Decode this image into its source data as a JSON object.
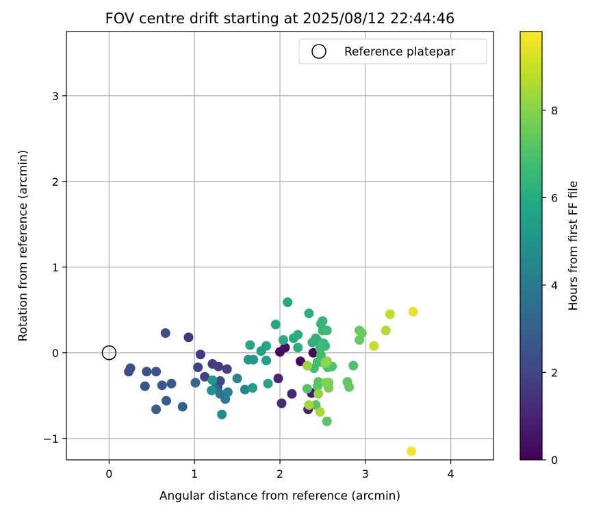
{
  "chart_data": {
    "type": "scatter",
    "title": "FOV centre drift starting at 2025/08/12 22:44:46",
    "xlabel": "Angular distance from reference (arcmin)",
    "ylabel": "Rotation from reference (arcmin)",
    "xlim": [
      -0.5,
      4.5
    ],
    "ylim": [
      -1.25,
      3.75
    ],
    "xticks": [
      0,
      1,
      2,
      3,
      4
    ],
    "yticks": [
      -1,
      0,
      1,
      2,
      3
    ],
    "xtick_labels": [
      "0",
      "1",
      "2",
      "3",
      "4"
    ],
    "ytick_labels": [
      "−1",
      "0",
      "1",
      "2",
      "3"
    ],
    "grid": true,
    "legend": {
      "position": "top-right",
      "entries": [
        "Reference platepar"
      ]
    },
    "reference_point": {
      "x": 0,
      "y": 0,
      "marker": "open-circle"
    },
    "colorbar": {
      "label": "Hours from first FF file",
      "colormap": "viridis",
      "range": [
        0,
        9.8
      ],
      "ticks": [
        0,
        2,
        4,
        6,
        8
      ],
      "tick_labels": [
        "0",
        "2",
        "4",
        "6",
        "8"
      ]
    },
    "points": [
      {
        "x": 2.0,
        "y": 0.01,
        "c": 0.3
      },
      {
        "x": 2.06,
        "y": 0.06,
        "c": 0.4
      },
      {
        "x": 2.24,
        "y": -0.1,
        "c": 0.3
      },
      {
        "x": 2.39,
        "y": 0.0,
        "c": 0.2
      },
      {
        "x": 2.37,
        "y": -0.47,
        "c": 0.7
      },
      {
        "x": 2.33,
        "y": -0.66,
        "c": 0.9
      },
      {
        "x": 1.98,
        "y": -0.3,
        "c": 1.0
      },
      {
        "x": 2.14,
        "y": -0.48,
        "c": 1.1
      },
      {
        "x": 2.02,
        "y": -0.59,
        "c": 1.2
      },
      {
        "x": 0.93,
        "y": 0.18,
        "c": 1.5
      },
      {
        "x": 1.07,
        "y": -0.02,
        "c": 1.6
      },
      {
        "x": 1.21,
        "y": -0.13,
        "c": 1.7
      },
      {
        "x": 1.28,
        "y": -0.16,
        "c": 1.7
      },
      {
        "x": 1.38,
        "y": -0.19,
        "c": 1.8
      },
      {
        "x": 1.04,
        "y": -0.17,
        "c": 1.9
      },
      {
        "x": 1.12,
        "y": -0.28,
        "c": 2.0
      },
      {
        "x": 1.3,
        "y": -0.33,
        "c": 2.1
      },
      {
        "x": 1.27,
        "y": -0.4,
        "c": 2.2
      },
      {
        "x": 0.66,
        "y": 0.23,
        "c": 2.3
      },
      {
        "x": 0.25,
        "y": -0.18,
        "c": 2.4
      },
      {
        "x": 0.23,
        "y": -0.22,
        "c": 2.4
      },
      {
        "x": 0.44,
        "y": -0.22,
        "c": 2.5
      },
      {
        "x": 0.55,
        "y": -0.22,
        "c": 2.5
      },
      {
        "x": 0.42,
        "y": -0.39,
        "c": 2.6
      },
      {
        "x": 0.62,
        "y": -0.38,
        "c": 2.7
      },
      {
        "x": 0.73,
        "y": -0.36,
        "c": 2.8
      },
      {
        "x": 0.67,
        "y": -0.56,
        "c": 2.9
      },
      {
        "x": 0.55,
        "y": -0.66,
        "c": 2.9
      },
      {
        "x": 0.86,
        "y": -0.63,
        "c": 3.1
      },
      {
        "x": 1.01,
        "y": -0.35,
        "c": 3.3
      },
      {
        "x": 1.24,
        "y": -0.42,
        "c": 3.5
      },
      {
        "x": 1.3,
        "y": -0.48,
        "c": 3.8
      },
      {
        "x": 1.36,
        "y": -0.54,
        "c": 4.0
      },
      {
        "x": 1.39,
        "y": -0.46,
        "c": 4.2
      },
      {
        "x": 1.5,
        "y": -0.3,
        "c": 4.4
      },
      {
        "x": 1.59,
        "y": -0.43,
        "c": 4.6
      },
      {
        "x": 1.32,
        "y": -0.72,
        "c": 4.8
      },
      {
        "x": 1.2,
        "y": -0.44,
        "c": 5.0
      },
      {
        "x": 1.21,
        "y": -0.32,
        "c": 5.2
      },
      {
        "x": 1.63,
        "y": -0.08,
        "c": 5.2
      },
      {
        "x": 1.69,
        "y": -0.08,
        "c": 5.3
      },
      {
        "x": 1.68,
        "y": -0.41,
        "c": 5.4
      },
      {
        "x": 1.84,
        "y": -0.09,
        "c": 5.5
      },
      {
        "x": 1.78,
        "y": 0.02,
        "c": 5.6
      },
      {
        "x": 1.86,
        "y": -0.36,
        "c": 5.7
      },
      {
        "x": 1.84,
        "y": 0.08,
        "c": 5.8
      },
      {
        "x": 1.65,
        "y": 0.09,
        "c": 5.8
      },
      {
        "x": 1.95,
        "y": 0.33,
        "c": 5.9
      },
      {
        "x": 2.09,
        "y": 0.59,
        "c": 5.9
      },
      {
        "x": 2.04,
        "y": 0.15,
        "c": 6.0
      },
      {
        "x": 2.16,
        "y": 0.17,
        "c": 6.0
      },
      {
        "x": 2.21,
        "y": 0.21,
        "c": 6.1
      },
      {
        "x": 2.21,
        "y": 0.06,
        "c": 6.1
      },
      {
        "x": 2.34,
        "y": 0.46,
        "c": 6.2
      },
      {
        "x": 2.38,
        "y": 0.12,
        "c": 6.2
      },
      {
        "x": 2.42,
        "y": 0.17,
        "c": 6.3
      },
      {
        "x": 2.44,
        "y": 0.14,
        "c": 6.3
      },
      {
        "x": 2.48,
        "y": 0.34,
        "c": 6.4
      },
      {
        "x": 2.5,
        "y": 0.37,
        "c": 6.4
      },
      {
        "x": 2.5,
        "y": 0.26,
        "c": 6.5
      },
      {
        "x": 2.51,
        "y": 0.11,
        "c": 6.5
      },
      {
        "x": 2.53,
        "y": 0.08,
        "c": 6.6
      },
      {
        "x": 2.55,
        "y": 0.26,
        "c": 6.6
      },
      {
        "x": 2.47,
        "y": 0.05,
        "c": 6.6
      },
      {
        "x": 2.48,
        "y": -0.03,
        "c": 6.7
      },
      {
        "x": 2.44,
        "y": -0.11,
        "c": 6.7
      },
      {
        "x": 2.48,
        "y": -0.1,
        "c": 6.8
      },
      {
        "x": 2.4,
        "y": -0.18,
        "c": 6.8
      },
      {
        "x": 2.52,
        "y": -0.12,
        "c": 6.9
      },
      {
        "x": 2.56,
        "y": -0.17,
        "c": 6.9
      },
      {
        "x": 2.61,
        "y": -0.16,
        "c": 7.0
      },
      {
        "x": 2.86,
        "y": -0.15,
        "c": 7.0
      },
      {
        "x": 2.32,
        "y": -0.42,
        "c": 7.1
      },
      {
        "x": 2.45,
        "y": -0.34,
        "c": 7.1
      },
      {
        "x": 2.44,
        "y": -0.39,
        "c": 7.2
      },
      {
        "x": 2.42,
        "y": -0.61,
        "c": 7.2
      },
      {
        "x": 2.55,
        "y": -0.8,
        "c": 7.3
      },
      {
        "x": 2.79,
        "y": -0.34,
        "c": 7.3
      },
      {
        "x": 2.81,
        "y": -0.4,
        "c": 7.4
      },
      {
        "x": 2.93,
        "y": 0.26,
        "c": 7.4
      },
      {
        "x": 2.96,
        "y": 0.23,
        "c": 7.5
      },
      {
        "x": 2.93,
        "y": 0.15,
        "c": 7.5
      },
      {
        "x": 2.57,
        "y": -0.35,
        "c": 7.7
      },
      {
        "x": 2.57,
        "y": -0.41,
        "c": 7.8
      },
      {
        "x": 2.54,
        "y": -0.35,
        "c": 7.9
      },
      {
        "x": 2.53,
        "y": -0.12,
        "c": 8.0
      },
      {
        "x": 2.55,
        "y": -0.1,
        "c": 8.1
      },
      {
        "x": 2.45,
        "y": -0.48,
        "c": 8.2
      },
      {
        "x": 2.32,
        "y": -0.15,
        "c": 8.3
      },
      {
        "x": 2.34,
        "y": -0.61,
        "c": 8.4
      },
      {
        "x": 2.47,
        "y": -0.69,
        "c": 8.5
      },
      {
        "x": 3.24,
        "y": 0.26,
        "c": 8.6
      },
      {
        "x": 3.29,
        "y": 0.45,
        "c": 8.8
      },
      {
        "x": 3.1,
        "y": 0.08,
        "c": 8.9
      },
      {
        "x": 3.56,
        "y": 0.48,
        "c": 9.5
      },
      {
        "x": 3.54,
        "y": -1.15,
        "c": 9.7
      }
    ]
  }
}
